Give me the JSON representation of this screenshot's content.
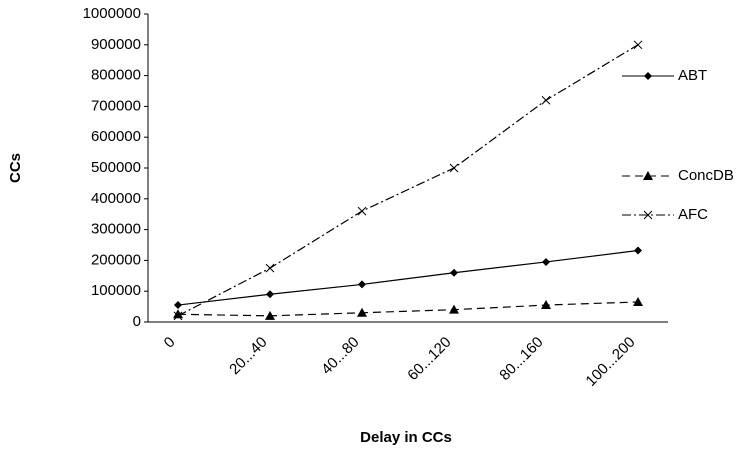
{
  "chart_data": {
    "type": "line",
    "x_label": "Delay in CCs",
    "y_label": "CCs",
    "categories": [
      "0",
      "20...40",
      "40...80",
      "60...120",
      "80...160",
      "100...200"
    ],
    "series": [
      {
        "name": "ABT",
        "color": "#000000",
        "dash": "solid",
        "marker": "diamond",
        "values": [
          55000,
          90000,
          122000,
          160000,
          195000,
          232000
        ]
      },
      {
        "name": "ConcDB",
        "color": "#000000",
        "dash": "dashed",
        "marker": "triangle",
        "values": [
          25000,
          20000,
          30000,
          40000,
          55000,
          65000
        ]
      },
      {
        "name": "AFC",
        "color": "#000000",
        "dash": "dashdot",
        "marker": "x",
        "values": [
          20000,
          175000,
          360000,
          500000,
          720000,
          900000
        ]
      }
    ],
    "ylim": [
      0,
      1000000
    ],
    "yticks": [
      0,
      100000,
      200000,
      300000,
      400000,
      500000,
      600000,
      700000,
      800000,
      900000,
      1000000
    ],
    "grid": false,
    "legend": "right"
  }
}
